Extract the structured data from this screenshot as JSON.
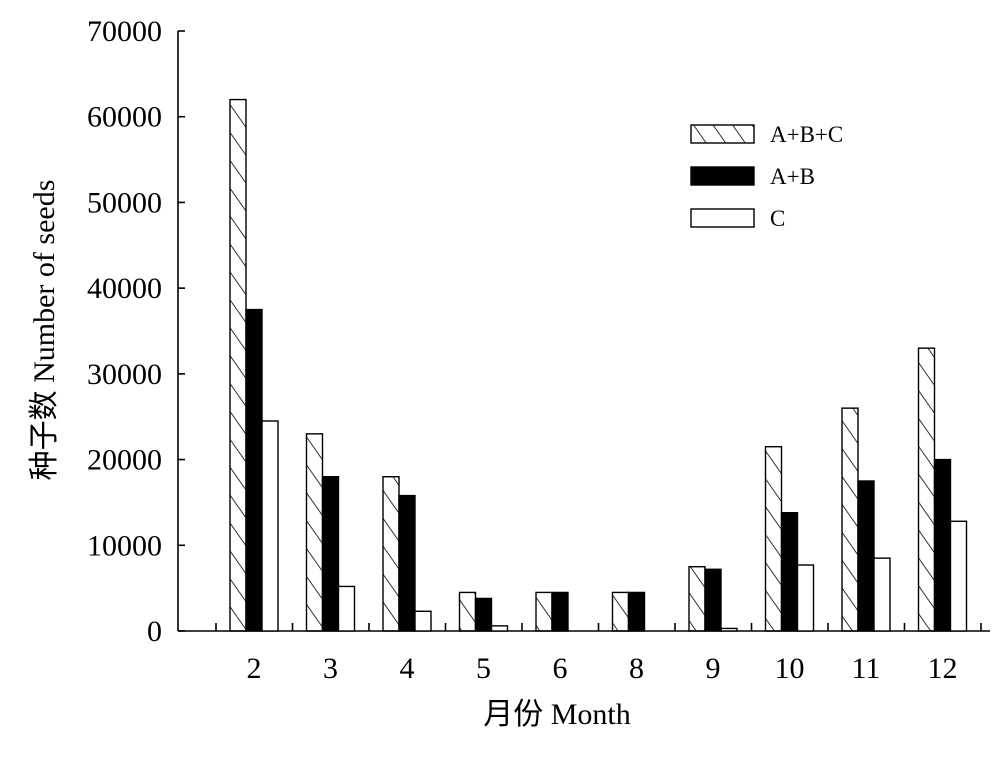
{
  "chart_data": {
    "type": "bar",
    "xlabel": "月份  Month",
    "ylabel": "种子数  Number of seeds",
    "ylim": [
      0,
      70000
    ],
    "yticks": [
      "0",
      "10000",
      "20000",
      "30000",
      "40000",
      "50000",
      "60000",
      "70000"
    ],
    "categories": [
      "2",
      "3",
      "4",
      "5",
      "6",
      "8",
      "9",
      "10",
      "11",
      "12"
    ],
    "series": [
      {
        "name": "A+B+C",
        "fill": "hatched",
        "values": [
          62000,
          23000,
          18000,
          4500,
          4500,
          4500,
          7500,
          21500,
          26000,
          33000
        ]
      },
      {
        "name": "A+B",
        "fill": "#000000",
        "values": [
          37500,
          18000,
          15800,
          3800,
          4500,
          4500,
          7200,
          13800,
          17500,
          20000
        ]
      },
      {
        "name": "C",
        "fill": "#ffffff",
        "values": [
          24500,
          5200,
          2300,
          600,
          0,
          0,
          300,
          7700,
          8500,
          12800
        ]
      }
    ],
    "legend_position": "top-right",
    "grid": false
  }
}
